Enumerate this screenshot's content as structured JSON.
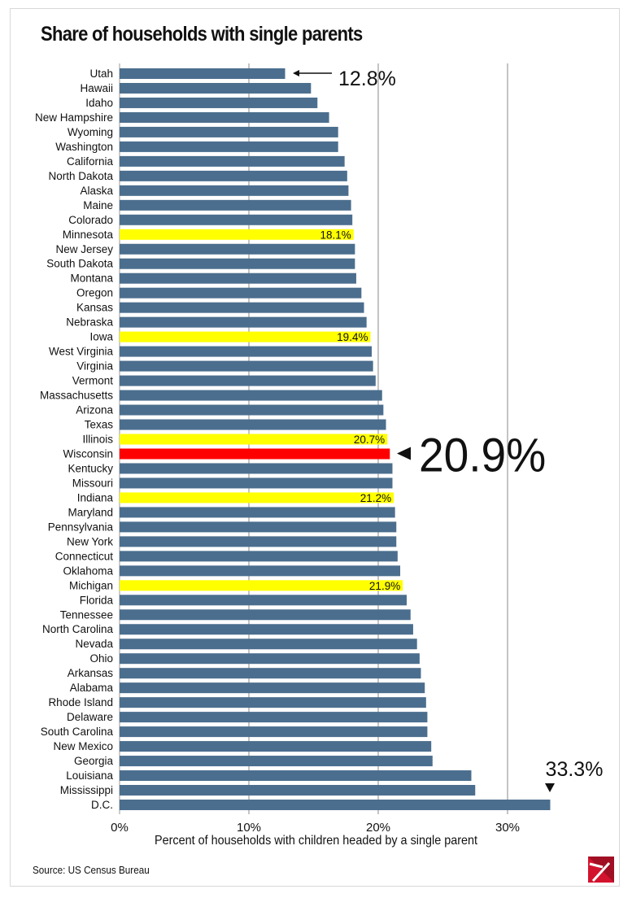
{
  "chart_data": {
    "type": "bar",
    "orientation": "horizontal",
    "title": "Share of households with single parents",
    "xlabel": "Percent of households with children headed by a single parent",
    "ylabel": "",
    "xlim": [
      0,
      34
    ],
    "xticks": [
      "0%",
      "10%",
      "20%",
      "30%"
    ],
    "grid": true,
    "categories": [
      "Utah",
      "Hawaii",
      "Idaho",
      "New Hampshire",
      "Wyoming",
      "Washington",
      "California",
      "North Dakota",
      "Alaska",
      "Maine",
      "Colorado",
      "Minnesota",
      "New Jersey",
      "South Dakota",
      "Montana",
      "Oregon",
      "Kansas",
      "Nebraska",
      "Iowa",
      "West Virginia",
      "Virginia",
      "Vermont",
      "Massachusetts",
      "Arizona",
      "Texas",
      "Illinois",
      "Wisconsin",
      "Kentucky",
      "Missouri",
      "Indiana",
      "Maryland",
      "Pennsylvania",
      "New York",
      "Connecticut",
      "Oklahoma",
      "Michigan",
      "Florida",
      "Tennessee",
      "North Carolina",
      "Nevada",
      "Ohio",
      "Arkansas",
      "Alabama",
      "Rhode Island",
      "Delaware",
      "South Carolina",
      "New Mexico",
      "Georgia",
      "Louisiana",
      "Mississippi",
      "D.C."
    ],
    "values": [
      12.8,
      14.8,
      15.3,
      16.2,
      16.9,
      16.9,
      17.4,
      17.6,
      17.7,
      17.9,
      18.0,
      18.1,
      18.2,
      18.2,
      18.3,
      18.7,
      18.9,
      19.1,
      19.4,
      19.5,
      19.6,
      19.8,
      20.3,
      20.4,
      20.6,
      20.7,
      20.9,
      21.1,
      21.1,
      21.2,
      21.3,
      21.4,
      21.4,
      21.5,
      21.7,
      21.9,
      22.2,
      22.5,
      22.7,
      23.0,
      23.2,
      23.3,
      23.6,
      23.7,
      23.8,
      23.8,
      24.1,
      24.2,
      27.2,
      27.5,
      33.3
    ],
    "bar_labels": {
      "Minnesota": "18.1%",
      "Iowa": "19.4%",
      "Illinois": "20.7%",
      "Indiana": "21.2%",
      "Michigan": "21.9%"
    },
    "annotations": {
      "Utah": "12.8%",
      "Wisconsin": "20.9%",
      "D.C.": "33.3%"
    },
    "colors": {
      "default": "#4b6e8e",
      "highlight": "#ffff00",
      "focus": "#ff0000",
      "grid": "#b0b0b0"
    }
  },
  "source": "Source: US Census Bureau"
}
